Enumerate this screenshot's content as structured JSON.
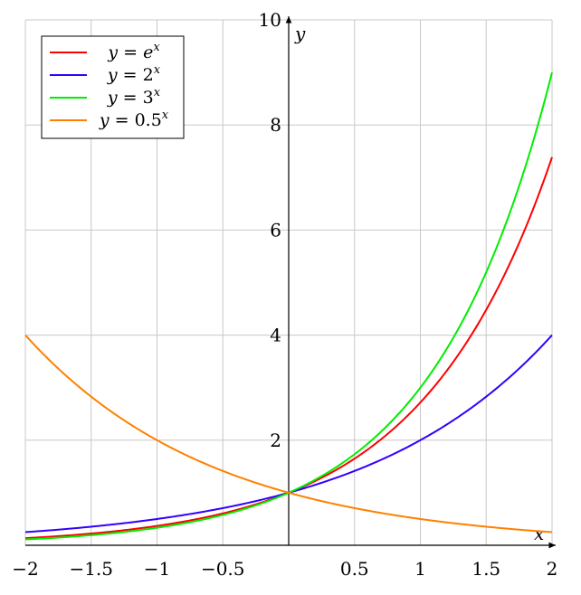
{
  "chart_data": {
    "type": "line",
    "title": "",
    "xlabel": "x",
    "ylabel": "y",
    "xlim": [
      -2,
      2
    ],
    "ylim": [
      0,
      10
    ],
    "grid": true,
    "legend_position": "top-left",
    "x_ticks": [
      {
        "value": -2,
        "label": "−2"
      },
      {
        "value": -1.5,
        "label": "−1.5"
      },
      {
        "value": -1,
        "label": "−1"
      },
      {
        "value": -0.5,
        "label": "−0.5"
      },
      {
        "value": 0.5,
        "label": "0.5"
      },
      {
        "value": 1,
        "label": "1"
      },
      {
        "value": 1.5,
        "label": "1.5"
      },
      {
        "value": 2,
        "label": "2"
      }
    ],
    "y_ticks": [
      {
        "value": 2,
        "label": "2"
      },
      {
        "value": 4,
        "label": "4"
      },
      {
        "value": 6,
        "label": "6"
      },
      {
        "value": 8,
        "label": "8"
      },
      {
        "value": 10,
        "label": "10"
      }
    ],
    "series": [
      {
        "name": "y = e^x",
        "legend": {
          "prefix": "y",
          "eq": " = ",
          "base": "e",
          "exp": "x"
        },
        "color": "#ff0000",
        "x": [
          -2,
          -1.5,
          -1,
          -0.5,
          0,
          0.5,
          1,
          1.5,
          2
        ],
        "y": [
          0.135,
          0.223,
          0.368,
          0.607,
          1,
          1.649,
          2.718,
          4.482,
          7.389
        ]
      },
      {
        "name": "y = 2^x",
        "legend": {
          "prefix": "y",
          "eq": " = ",
          "base": "2",
          "exp": "x"
        },
        "color": "#3300ff",
        "x": [
          -2,
          -1.5,
          -1,
          -0.5,
          0,
          0.5,
          1,
          1.5,
          2
        ],
        "y": [
          0.25,
          0.354,
          0.5,
          0.707,
          1,
          1.414,
          2,
          2.828,
          4
        ]
      },
      {
        "name": "y = 3^x",
        "legend": {
          "prefix": "y",
          "eq": " = ",
          "base": "3",
          "exp": "x"
        },
        "color": "#00ee00",
        "x": [
          -2,
          -1.5,
          -1,
          -0.5,
          0,
          0.5,
          1,
          1.5,
          2
        ],
        "y": [
          0.111,
          0.192,
          0.333,
          0.577,
          1,
          1.732,
          3,
          5.196,
          9
        ]
      },
      {
        "name": "y = 0.5^x",
        "legend": {
          "prefix": "y",
          "eq": " = ",
          "base": "0.5",
          "exp": "x"
        },
        "color": "#ff8000",
        "x": [
          -2,
          -1.5,
          -1,
          -0.5,
          0,
          0.5,
          1,
          1.5,
          2
        ],
        "y": [
          4,
          2.828,
          2,
          1.414,
          1,
          0.707,
          0.5,
          0.354,
          0.25
        ]
      }
    ]
  }
}
